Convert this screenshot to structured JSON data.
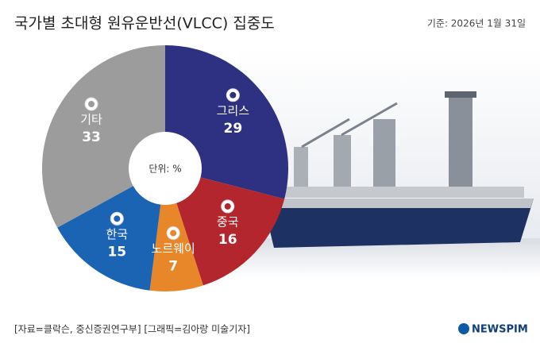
{
  "chart_data": {
    "type": "donut",
    "title": "국가별 초대형 원유운반선(VLCC) 집중도",
    "subtitle": "기준: 2026년 1월 31일",
    "unit_label": "단위: %",
    "categories": [
      "그리스",
      "중국",
      "노르웨이",
      "한국",
      "기타"
    ],
    "values": [
      29,
      16,
      7,
      15,
      33
    ],
    "colors": [
      "#2e3181",
      "#b3262d",
      "#e8862a",
      "#1b63b3",
      "#9c9c9c"
    ],
    "source": "[자료=클락슨, 중신증권연구부] [그래픽=김아랑 미술기자]",
    "brand": "NEWSPIM"
  }
}
